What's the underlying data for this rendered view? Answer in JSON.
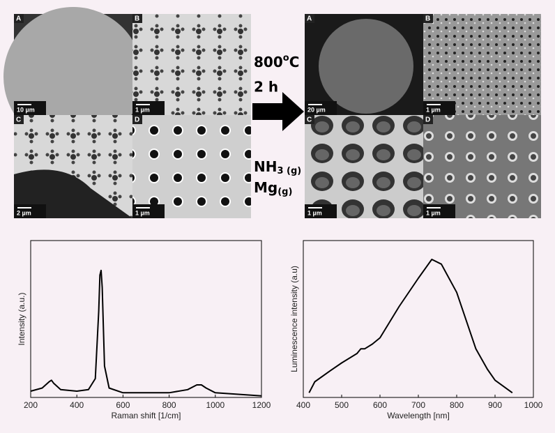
{
  "figure": {
    "micrographs": {
      "before": [
        {
          "label": "A",
          "scale": "10 µm"
        },
        {
          "label": "B",
          "scale": "1 µm"
        },
        {
          "label": "C",
          "scale": "2 µm"
        },
        {
          "label": "D",
          "scale": "1 µm"
        }
      ],
      "after": [
        {
          "label": "A",
          "scale": "20 µm"
        },
        {
          "label": "B",
          "scale": "1 µm"
        },
        {
          "label": "C",
          "scale": "1 µm"
        },
        {
          "label": "D",
          "scale": "1 µm"
        }
      ]
    },
    "conditions": {
      "temperature": {
        "value": "800",
        "sup": "o",
        "unit": "C"
      },
      "time": "2 h",
      "gas1": {
        "base": "NH",
        "sub": "3 (g)"
      },
      "gas2": {
        "base": "Mg",
        "sub": "(g)"
      }
    }
  },
  "chart_data": [
    {
      "type": "line",
      "x_label": "Raman shift [1/cm]",
      "y_label": "Intensity (a.u.)",
      "xlim": [
        200,
        1200
      ],
      "xticks": [
        200,
        400,
        600,
        800,
        1000,
        1200
      ],
      "ylim": [
        0,
        1
      ],
      "color": "#000000",
      "x": [
        200,
        250,
        280,
        290,
        300,
        330,
        400,
        450,
        480,
        495,
        500,
        505,
        510,
        520,
        540,
        600,
        700,
        800,
        880,
        920,
        940,
        960,
        1000,
        1100,
        1200
      ],
      "values": [
        0.04,
        0.06,
        0.1,
        0.11,
        0.09,
        0.05,
        0.04,
        0.05,
        0.12,
        0.55,
        0.78,
        0.81,
        0.7,
        0.2,
        0.06,
        0.03,
        0.03,
        0.03,
        0.05,
        0.08,
        0.08,
        0.06,
        0.03,
        0.02,
        0.01
      ]
    },
    {
      "type": "line",
      "x_label": "Wavelength  [nm]",
      "y_label": "Luminescence intensity (a.u)",
      "xlim": [
        400,
        1000
      ],
      "xticks": [
        400,
        500,
        600,
        700,
        800,
        900,
        1000
      ],
      "ylim": [
        0,
        1
      ],
      "color": "#000000",
      "x": [
        415,
        430,
        470,
        500,
        540,
        550,
        560,
        580,
        600,
        650,
        700,
        735,
        760,
        800,
        850,
        880,
        900,
        945
      ],
      "values": [
        0.03,
        0.1,
        0.17,
        0.22,
        0.28,
        0.31,
        0.31,
        0.34,
        0.38,
        0.58,
        0.76,
        0.88,
        0.85,
        0.67,
        0.31,
        0.18,
        0.11,
        0.03
      ]
    }
  ]
}
